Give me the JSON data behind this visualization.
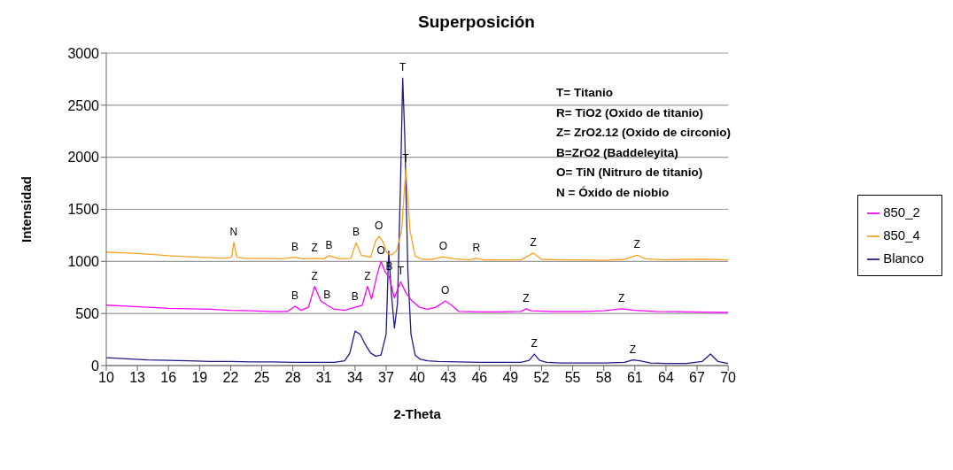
{
  "chart_data": {
    "type": "line",
    "title": "Superposición",
    "xlabel": "2-Theta",
    "ylabel": "Intensidad",
    "xlim": [
      10,
      70
    ],
    "xticks": [
      10,
      13,
      16,
      19,
      22,
      25,
      28,
      31,
      34,
      37,
      40,
      43,
      46,
      49,
      52,
      55,
      58,
      61,
      64,
      67,
      70
    ],
    "ylim": [
      0,
      3000
    ],
    "yticks": [
      0,
      500,
      1000,
      1500,
      2000,
      2500,
      3000
    ],
    "grid": "y",
    "legend": "right",
    "marker": "none",
    "line_style": "solid",
    "series": [
      {
        "name": "Blanco",
        "color": "#1f1a8a",
        "x": [
          10,
          12,
          14,
          16,
          18,
          20,
          22,
          24,
          26,
          28,
          30,
          32,
          33,
          33.5,
          34,
          34.5,
          35,
          35.5,
          36,
          36.5,
          37,
          37.25,
          37.5,
          37.8,
          38.1,
          38.4,
          38.6,
          38.8,
          39.1,
          39.4,
          39.8,
          40.3,
          41,
          42,
          44,
          46,
          48,
          50,
          50.8,
          51.3,
          51.8,
          52.5,
          54,
          56,
          58,
          60,
          60.8,
          61.5,
          62.5,
          64,
          66,
          67.5,
          68.3,
          69,
          70
        ],
        "values": [
          75,
          65,
          55,
          50,
          45,
          40,
          40,
          35,
          35,
          30,
          30,
          30,
          45,
          120,
          330,
          300,
          200,
          120,
          90,
          100,
          300,
          1100,
          700,
          360,
          600,
          1800,
          2760,
          2200,
          900,
          300,
          100,
          60,
          45,
          40,
          35,
          30,
          30,
          30,
          50,
          110,
          50,
          30,
          25,
          25,
          25,
          30,
          55,
          45,
          25,
          20,
          20,
          40,
          110,
          40,
          20
        ]
      },
      {
        "name": "850_2",
        "color": "#ff00ff",
        "x": [
          10,
          12,
          14,
          16,
          18,
          20,
          22,
          24,
          26,
          27.5,
          28.2,
          28.8,
          29.5,
          30.1,
          30.7,
          31.3,
          32,
          33,
          34,
          34.7,
          35.2,
          35.6,
          36.1,
          36.5,
          36.9,
          37.3,
          37.8,
          38.4,
          38.9,
          39.5,
          40.2,
          41,
          41.8,
          42.7,
          43.3,
          44,
          46,
          48,
          50,
          50.5,
          51,
          53,
          56,
          58,
          59.7,
          61,
          63,
          66,
          70
        ],
        "values": [
          580,
          570,
          560,
          550,
          545,
          540,
          530,
          525,
          520,
          520,
          570,
          530,
          560,
          760,
          620,
          580,
          540,
          530,
          560,
          580,
          760,
          640,
          860,
          1000,
          900,
          850,
          650,
          805,
          700,
          620,
          560,
          540,
          560,
          620,
          580,
          520,
          515,
          515,
          520,
          545,
          525,
          520,
          520,
          525,
          545,
          530,
          520,
          515,
          510
        ]
      },
      {
        "name": "850_4",
        "color": "#ffa020",
        "x": [
          10,
          12,
          14,
          16,
          18,
          20,
          21.5,
          22.1,
          22.3,
          22.6,
          23.5,
          25,
          27,
          28.2,
          29,
          30.1,
          31,
          31.5,
          32.5,
          33.6,
          34.1,
          34.6,
          35.5,
          36,
          36.3,
          36.7,
          37.1,
          37.5,
          38,
          38.5,
          38.9,
          39.3,
          39.8,
          40.5,
          41.5,
          42.5,
          43.5,
          45,
          45.7,
          46.5,
          48,
          50,
          51.2,
          52,
          54,
          56,
          58,
          60,
          61.2,
          62,
          64,
          66,
          68,
          70
        ],
        "values": [
          1090,
          1080,
          1070,
          1055,
          1045,
          1035,
          1030,
          1040,
          1185,
          1040,
          1030,
          1030,
          1025,
          1040,
          1025,
          1030,
          1025,
          1055,
          1025,
          1030,
          1180,
          1060,
          1040,
          1200,
          1240,
          1190,
          1080,
          1060,
          1100,
          1300,
          1890,
          1300,
          1050,
          1020,
          1020,
          1045,
          1025,
          1015,
          1030,
          1015,
          1015,
          1015,
          1080,
          1020,
          1015,
          1015,
          1010,
          1020,
          1060,
          1025,
          1015,
          1020,
          1020,
          1015
        ]
      }
    ],
    "annotations": [
      "T= Titanio",
      "R= TiO2 (Oxido de titanio)",
      "Z= ZrO2.12 (Oxido de circonio)",
      "B=ZrO2 (Baddeleyita)",
      "O= TiN (Nitruro de titanio)",
      "N = Óxido de niobio",
      {
        "text": "N",
        "x": 22.3,
        "y": 1185
      },
      {
        "text": "B",
        "x": 28.2,
        "y": 1040
      },
      {
        "text": "Z",
        "x": 30.1,
        "y": 1030
      },
      {
        "text": "B",
        "x": 31.5,
        "y": 1055
      },
      {
        "text": "B",
        "x": 34.1,
        "y": 1180
      },
      {
        "text": "O",
        "x": 36.3,
        "y": 1240
      },
      {
        "text": "T",
        "x": 38.6,
        "y": 2760
      },
      {
        "text": "T",
        "x": 38.9,
        "y": 1890
      },
      {
        "text": "O",
        "x": 42.5,
        "y": 1045
      },
      {
        "text": "R",
        "x": 45.7,
        "y": 1030
      },
      {
        "text": "Z",
        "x": 51.2,
        "y": 1080
      },
      {
        "text": "Z",
        "x": 61.2,
        "y": 1060
      },
      {
        "text": "B",
        "x": 28.2,
        "y": 570
      },
      {
        "text": "Z",
        "x": 30.1,
        "y": 760
      },
      {
        "text": "B",
        "x": 31.3,
        "y": 580
      },
      {
        "text": "B",
        "x": 34,
        "y": 560
      },
      {
        "text": "Z",
        "x": 35.2,
        "y": 760
      },
      {
        "text": "O",
        "x": 36.5,
        "y": 1000
      },
      {
        "text": "B",
        "x": 37.3,
        "y": 850
      },
      {
        "text": "T",
        "x": 38.4,
        "y": 805
      },
      {
        "text": "O",
        "x": 42.7,
        "y": 620
      },
      {
        "text": "Z",
        "x": 50.5,
        "y": 545
      },
      {
        "text": "Z",
        "x": 59.7,
        "y": 545
      },
      {
        "text": "Z",
        "x": 51.3,
        "y": 110
      },
      {
        "text": "Z",
        "x": 60.8,
        "y": 55
      }
    ]
  }
}
